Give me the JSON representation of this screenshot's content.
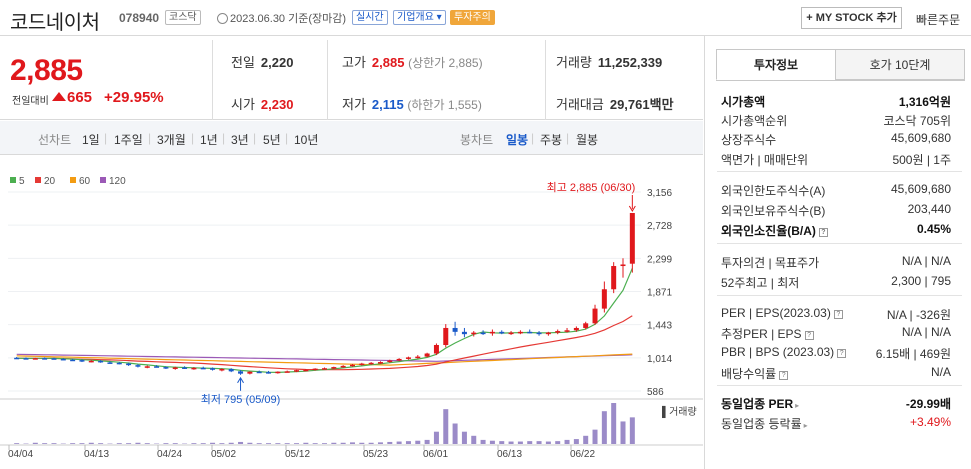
{
  "header": {
    "name": "코드네이처",
    "code": "078940",
    "market": "코스닥",
    "date": "2023.06.30 기준(장마감)",
    "realtime": "실시간",
    "company_info": "기업개요",
    "caution": "투자주의",
    "mystock": "+ MY STOCK 추가",
    "quick_order": "빠른주문"
  },
  "price": {
    "current": "2,885",
    "prev_label": "전일대비",
    "change": "665",
    "change_pct": "+29.95%"
  },
  "summary": {
    "prev_label": "전일",
    "prev": "2,220",
    "high_label": "고가",
    "high": "2,885",
    "high_note": "(상한가 2,885)",
    "volume_label": "거래량",
    "volume": "11,252,339",
    "open_label": "시가",
    "open": "2,230",
    "low_label": "저가",
    "low": "2,115",
    "low_note": "(하한가 1,555)",
    "amount_label": "거래대금",
    "amount": "29,761",
    "amount_unit": "백만"
  },
  "tabs": {
    "line": [
      "선차트",
      "1일",
      "1주일",
      "3개월",
      "1년",
      "3년",
      "5년",
      "10년"
    ],
    "candle": [
      "봉차트",
      "일봉",
      "주봉",
      "월봉"
    ]
  },
  "right": {
    "tab1": "투자정보",
    "tab2": "호가 10단계",
    "rows": [
      {
        "k": "시가총액",
        "v": "1,316억원"
      },
      {
        "k": "시가총액순위",
        "v": "코스닥 705위"
      },
      {
        "k": "상장주식수",
        "v": "45,609,680"
      },
      {
        "k": "액면가 | 매매단위",
        "v": "500원 | 1주"
      },
      {
        "k": "외국인한도주식수(A)",
        "v": "45,609,680"
      },
      {
        "k": "외국인보유주식수(B)",
        "v": "203,440"
      },
      {
        "k": "외국인소진율(B/A)",
        "v": "0.45%"
      },
      {
        "k": "투자의견 | 목표주가",
        "v": "N/A | N/A"
      },
      {
        "k": "52주최고 | 최저",
        "v": "2,300 | 795"
      },
      {
        "k": "PER | EPS(2023.03)",
        "v": "N/A | -326원"
      },
      {
        "k": "추정PER | EPS",
        "v": "N/A | N/A"
      },
      {
        "k": "PBR | BPS (2023.03)",
        "v": "6.15배 | 469원"
      },
      {
        "k": "배당수익률",
        "v": "N/A"
      },
      {
        "k": "동일업종 PER",
        "v": "-29.99배"
      },
      {
        "k": "동일업종 등락률",
        "v": "+3.49%"
      }
    ]
  },
  "colors": {
    "up": "#e0181c",
    "down": "#1a5ac9",
    "ma5": "#4caf50",
    "ma20": "#e53935",
    "ma60": "#f39c12",
    "ma120": "#9b59b6"
  },
  "chart_data": {
    "type": "candlestick",
    "legend": [
      "5",
      "20",
      "60",
      "120"
    ],
    "yticks": [
      3156,
      2728,
      2299,
      1871,
      1443,
      1014,
      586
    ],
    "xticks": [
      "04/04",
      "04/13",
      "04/24",
      "05/02",
      "05/12",
      "05/23",
      "06/01",
      "06/13",
      "06/22"
    ],
    "high_annot": "최고 2,885 (06/30)",
    "low_annot": "최저 795 (05/09)",
    "volume_label": "거래량",
    "candles": [
      [
        1015,
        1025,
        1005,
        1010
      ],
      [
        1010,
        1020,
        1000,
        1005
      ],
      [
        1005,
        1015,
        995,
        1010
      ],
      [
        1010,
        1020,
        1000,
        1008
      ],
      [
        1008,
        1015,
        995,
        1000
      ],
      [
        1000,
        1010,
        985,
        990
      ],
      [
        990,
        1000,
        975,
        985
      ],
      [
        985,
        995,
        960,
        970
      ],
      [
        970,
        985,
        955,
        975
      ],
      [
        975,
        985,
        950,
        955
      ],
      [
        955,
        970,
        940,
        950
      ],
      [
        950,
        960,
        930,
        940
      ],
      [
        940,
        950,
        910,
        920
      ],
      [
        920,
        935,
        890,
        900
      ],
      [
        900,
        915,
        880,
        905
      ],
      [
        905,
        920,
        890,
        895
      ],
      [
        895,
        905,
        870,
        880
      ],
      [
        880,
        900,
        860,
        890
      ],
      [
        890,
        905,
        870,
        875
      ],
      [
        875,
        895,
        860,
        885
      ],
      [
        885,
        900,
        870,
        880
      ],
      [
        880,
        890,
        850,
        860
      ],
      [
        860,
        880,
        840,
        870
      ],
      [
        870,
        880,
        830,
        840
      ],
      [
        840,
        855,
        795,
        810
      ],
      [
        810,
        840,
        800,
        835
      ],
      [
        835,
        850,
        820,
        830
      ],
      [
        830,
        845,
        810,
        820
      ],
      [
        820,
        840,
        810,
        835
      ],
      [
        835,
        850,
        825,
        840
      ],
      [
        840,
        860,
        830,
        855
      ],
      [
        855,
        870,
        845,
        860
      ],
      [
        860,
        880,
        850,
        875
      ],
      [
        875,
        890,
        865,
        880
      ],
      [
        880,
        900,
        870,
        895
      ],
      [
        895,
        920,
        885,
        910
      ],
      [
        910,
        935,
        900,
        925
      ],
      [
        925,
        950,
        915,
        940
      ],
      [
        940,
        960,
        925,
        950
      ],
      [
        950,
        970,
        935,
        960
      ],
      [
        960,
        990,
        950,
        980
      ],
      [
        980,
        1010,
        970,
        1000
      ],
      [
        1000,
        1030,
        990,
        1020
      ],
      [
        1020,
        1050,
        1005,
        1030
      ],
      [
        1030,
        1080,
        1020,
        1070
      ],
      [
        1070,
        1200,
        1050,
        1180
      ],
      [
        1180,
        1450,
        1150,
        1400
      ],
      [
        1400,
        1480,
        1300,
        1350
      ],
      [
        1350,
        1400,
        1280,
        1320
      ],
      [
        1320,
        1360,
        1290,
        1340
      ],
      [
        1340,
        1370,
        1310,
        1330
      ],
      [
        1330,
        1380,
        1300,
        1350
      ],
      [
        1350,
        1370,
        1320,
        1330
      ],
      [
        1330,
        1360,
        1310,
        1340
      ],
      [
        1340,
        1370,
        1320,
        1350
      ],
      [
        1350,
        1380,
        1330,
        1340
      ],
      [
        1340,
        1360,
        1300,
        1320
      ],
      [
        1320,
        1350,
        1300,
        1340
      ],
      [
        1340,
        1380,
        1320,
        1360
      ],
      [
        1360,
        1400,
        1340,
        1370
      ],
      [
        1370,
        1420,
        1350,
        1400
      ],
      [
        1400,
        1480,
        1380,
        1460
      ],
      [
        1460,
        1700,
        1440,
        1650
      ],
      [
        1650,
        2000,
        1600,
        1900
      ],
      [
        1900,
        2250,
        1850,
        2200
      ],
      [
        2200,
        2300,
        2050,
        2220
      ],
      [
        2230,
        2885,
        2115,
        2885
      ]
    ],
    "volumes": [
      0.02,
      0.01,
      0.03,
      0.02,
      0.02,
      0.01,
      0.02,
      0.02,
      0.03,
      0.02,
      0.01,
      0.02,
      0.02,
      0.03,
      0.02,
      0.01,
      0.02,
      0.02,
      0.01,
      0.02,
      0.02,
      0.03,
      0.02,
      0.03,
      0.05,
      0.03,
      0.02,
      0.02,
      0.02,
      0.02,
      0.02,
      0.03,
      0.02,
      0.02,
      0.03,
      0.03,
      0.04,
      0.03,
      0.03,
      0.04,
      0.05,
      0.06,
      0.07,
      0.08,
      0.1,
      0.3,
      0.85,
      0.5,
      0.3,
      0.2,
      0.1,
      0.08,
      0.07,
      0.06,
      0.06,
      0.07,
      0.07,
      0.06,
      0.07,
      0.1,
      0.12,
      0.2,
      0.35,
      0.8,
      1.0,
      0.55,
      0.65
    ]
  }
}
